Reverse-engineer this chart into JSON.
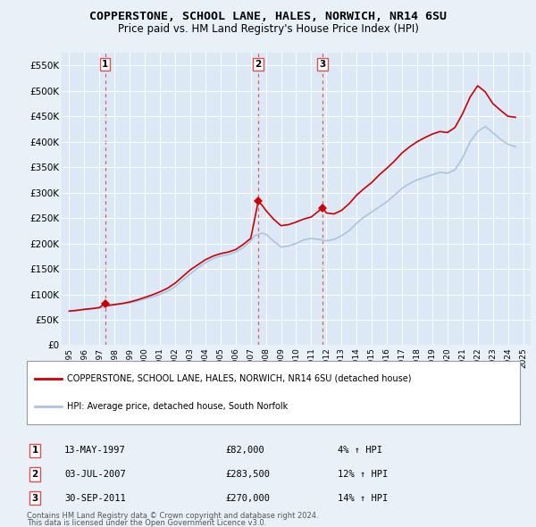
{
  "title": "COPPERSTONE, SCHOOL LANE, HALES, NORWICH, NR14 6SU",
  "subtitle": "Price paid vs. HM Land Registry's House Price Index (HPI)",
  "legend_line1": "COPPERSTONE, SCHOOL LANE, HALES, NORWICH, NR14 6SU (detached house)",
  "legend_line2": "HPI: Average price, detached house, South Norfolk",
  "footer1": "Contains HM Land Registry data © Crown copyright and database right 2024.",
  "footer2": "This data is licensed under the Open Government Licence v3.0.",
  "transactions": [
    {
      "num": 1,
      "date": "13-MAY-1997",
      "price": 82000,
      "pct": "4%",
      "x": 1997.37
    },
    {
      "num": 2,
      "date": "03-JUL-2007",
      "price": 283500,
      "pct": "12%",
      "x": 2007.5
    },
    {
      "num": 3,
      "date": "30-SEP-2011",
      "price": 270000,
      "pct": "14%",
      "x": 2011.75
    }
  ],
  "hpi_color": "#aac4e0",
  "price_color": "#cc0000",
  "vline_color": "#e05050",
  "bg_color": "#e8f0f8",
  "plot_bg": "#dce8f5",
  "ylim": [
    0,
    575000
  ],
  "xlim": [
    1994.5,
    2025.5
  ],
  "yticks": [
    0,
    50000,
    100000,
    150000,
    200000,
    250000,
    300000,
    350000,
    400000,
    450000,
    500000,
    550000
  ],
  "ytick_labels": [
    "£0",
    "£50K",
    "£100K",
    "£150K",
    "£200K",
    "£250K",
    "£300K",
    "£350K",
    "£400K",
    "£450K",
    "£500K",
    "£550K"
  ],
  "hpi_data": [
    [
      1995,
      67000
    ],
    [
      1995.5,
      68000
    ],
    [
      1996,
      70000
    ],
    [
      1996.5,
      71000
    ],
    [
      1997,
      73000
    ],
    [
      1997.5,
      76000
    ],
    [
      1998,
      79000
    ],
    [
      1998.5,
      81000
    ],
    [
      1999,
      83000
    ],
    [
      1999.5,
      87000
    ],
    [
      2000,
      91000
    ],
    [
      2000.5,
      95000
    ],
    [
      2001,
      100000
    ],
    [
      2001.5,
      106000
    ],
    [
      2002,
      115000
    ],
    [
      2002.5,
      128000
    ],
    [
      2003,
      140000
    ],
    [
      2003.5,
      152000
    ],
    [
      2004,
      162000
    ],
    [
      2004.5,
      170000
    ],
    [
      2005,
      175000
    ],
    [
      2005.5,
      178000
    ],
    [
      2006,
      183000
    ],
    [
      2006.5,
      192000
    ],
    [
      2007,
      205000
    ],
    [
      2007.25,
      215000
    ],
    [
      2007.5,
      218000
    ],
    [
      2007.75,
      220000
    ],
    [
      2008,
      218000
    ],
    [
      2008.5,
      205000
    ],
    [
      2009,
      193000
    ],
    [
      2009.5,
      195000
    ],
    [
      2010,
      200000
    ],
    [
      2010.5,
      207000
    ],
    [
      2011,
      210000
    ],
    [
      2011.5,
      208000
    ],
    [
      2012,
      205000
    ],
    [
      2012.5,
      208000
    ],
    [
      2013,
      215000
    ],
    [
      2013.5,
      225000
    ],
    [
      2014,
      240000
    ],
    [
      2014.5,
      252000
    ],
    [
      2015,
      262000
    ],
    [
      2015.5,
      272000
    ],
    [
      2016,
      282000
    ],
    [
      2016.5,
      295000
    ],
    [
      2017,
      308000
    ],
    [
      2017.5,
      318000
    ],
    [
      2018,
      325000
    ],
    [
      2018.5,
      330000
    ],
    [
      2019,
      335000
    ],
    [
      2019.5,
      340000
    ],
    [
      2020,
      338000
    ],
    [
      2020.5,
      345000
    ],
    [
      2021,
      368000
    ],
    [
      2021.5,
      400000
    ],
    [
      2022,
      420000
    ],
    [
      2022.5,
      430000
    ],
    [
      2023,
      418000
    ],
    [
      2023.5,
      405000
    ],
    [
      2024,
      395000
    ],
    [
      2024.5,
      390000
    ]
  ],
  "price_data": [
    [
      1995,
      67000
    ],
    [
      1995.5,
      68500
    ],
    [
      1996,
      70500
    ],
    [
      1996.5,
      72000
    ],
    [
      1997,
      74000
    ],
    [
      1997.37,
      82000
    ],
    [
      1997.5,
      78000
    ],
    [
      1998,
      80000
    ],
    [
      1998.5,
      82000
    ],
    [
      1999,
      85000
    ],
    [
      1999.5,
      89000
    ],
    [
      2000,
      94000
    ],
    [
      2000.5,
      99000
    ],
    [
      2001,
      105000
    ],
    [
      2001.5,
      112000
    ],
    [
      2002,
      122000
    ],
    [
      2002.5,
      135000
    ],
    [
      2003,
      148000
    ],
    [
      2003.5,
      158000
    ],
    [
      2004,
      168000
    ],
    [
      2004.5,
      175000
    ],
    [
      2005,
      180000
    ],
    [
      2005.5,
      183000
    ],
    [
      2006,
      188000
    ],
    [
      2006.5,
      198000
    ],
    [
      2007,
      210000
    ],
    [
      2007.5,
      283500
    ],
    [
      2007.75,
      275000
    ],
    [
      2008,
      265000
    ],
    [
      2008.5,
      248000
    ],
    [
      2009,
      235000
    ],
    [
      2009.5,
      237000
    ],
    [
      2010,
      242000
    ],
    [
      2010.5,
      248000
    ],
    [
      2011,
      252000
    ],
    [
      2011.75,
      270000
    ],
    [
      2012,
      260000
    ],
    [
      2012.5,
      258000
    ],
    [
      2013,
      265000
    ],
    [
      2013.5,
      278000
    ],
    [
      2014,
      295000
    ],
    [
      2014.5,
      308000
    ],
    [
      2015,
      320000
    ],
    [
      2015.5,
      335000
    ],
    [
      2016,
      348000
    ],
    [
      2016.5,
      362000
    ],
    [
      2017,
      378000
    ],
    [
      2017.5,
      390000
    ],
    [
      2018,
      400000
    ],
    [
      2018.5,
      408000
    ],
    [
      2019,
      415000
    ],
    [
      2019.5,
      420000
    ],
    [
      2020,
      418000
    ],
    [
      2020.5,
      428000
    ],
    [
      2021,
      455000
    ],
    [
      2021.5,
      488000
    ],
    [
      2022,
      510000
    ],
    [
      2022.5,
      498000
    ],
    [
      2023,
      475000
    ],
    [
      2023.5,
      462000
    ],
    [
      2024,
      450000
    ],
    [
      2024.5,
      448000
    ]
  ]
}
